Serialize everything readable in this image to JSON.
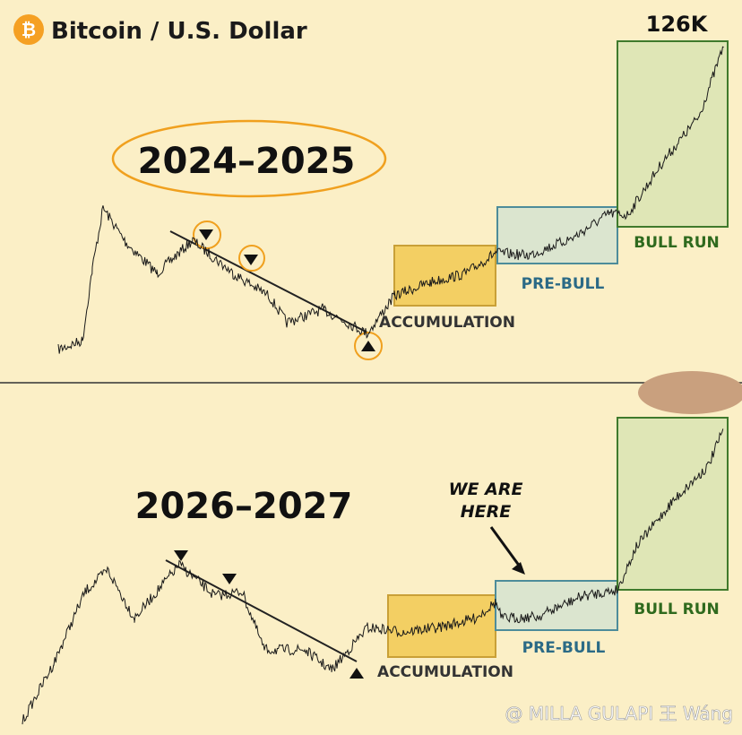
{
  "header": {
    "icon": "₿",
    "title": "Bitcoin / U.S. Dollar"
  },
  "panels": [
    {
      "period": "2024–2025",
      "peak_label": "126K",
      "zones": [
        "ACCUMULATION",
        "PRE-BULL",
        "BULL RUN"
      ]
    },
    {
      "period": "2026–2027",
      "note": [
        "WE ARE",
        "HERE"
      ],
      "zones": [
        "ACCUMULATION",
        "PRE-BULL",
        "BULL RUN"
      ]
    }
  ],
  "watermark": "@ MILLA GULAPI 王 Wáng"
}
